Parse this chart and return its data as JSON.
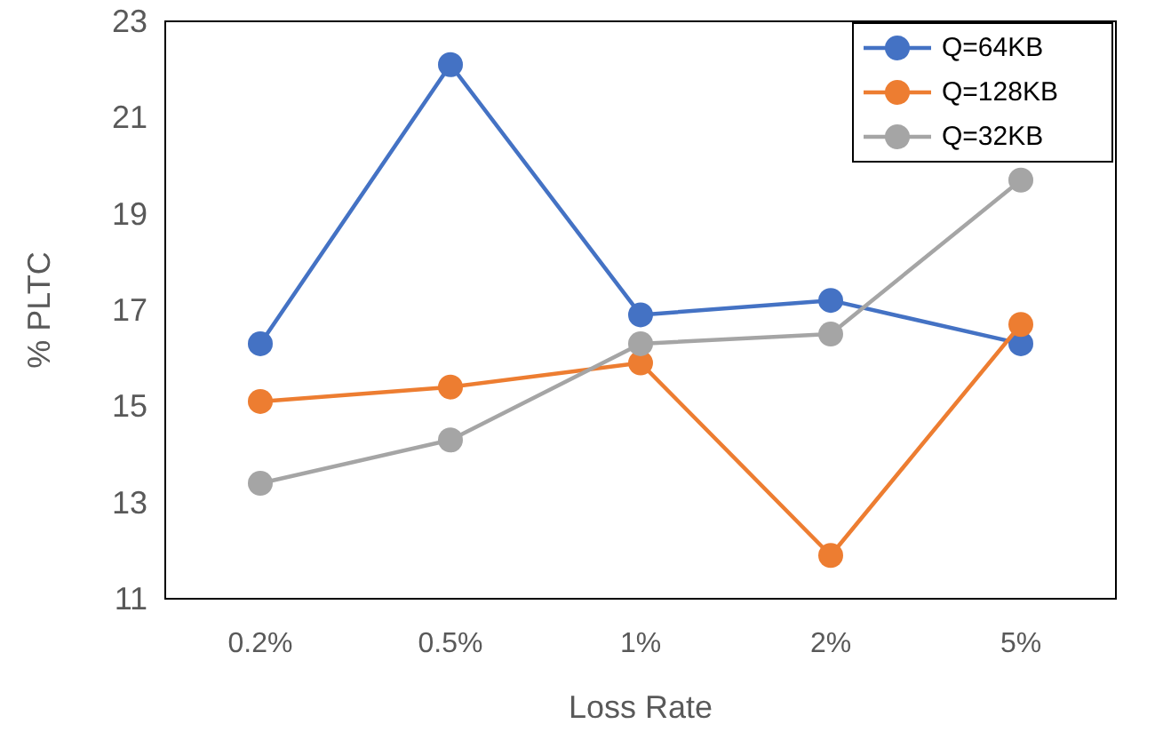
{
  "chart_data": {
    "type": "line",
    "xlabel": "Loss Rate",
    "ylabel": "% PLTC",
    "categories": [
      "0.2%",
      "0.5%",
      "1%",
      "2%",
      "5%"
    ],
    "series": [
      {
        "name": "Q=64KB",
        "color": "#4472c4",
        "values": [
          16.3,
          22.1,
          16.9,
          17.2,
          16.3
        ]
      },
      {
        "name": "Q=128KB",
        "color": "#ed7d31",
        "values": [
          15.1,
          15.4,
          15.9,
          11.9,
          16.7
        ]
      },
      {
        "name": "Q=32KB",
        "color": "#a5a5a5",
        "values": [
          13.4,
          14.3,
          16.3,
          16.5,
          19.7
        ]
      }
    ],
    "ylim": [
      11,
      23
    ],
    "yticks": [
      11,
      13,
      15,
      17,
      19,
      21,
      23
    ],
    "grid": false,
    "legend": "top right",
    "marker": "circle",
    "line_style": "solid"
  }
}
